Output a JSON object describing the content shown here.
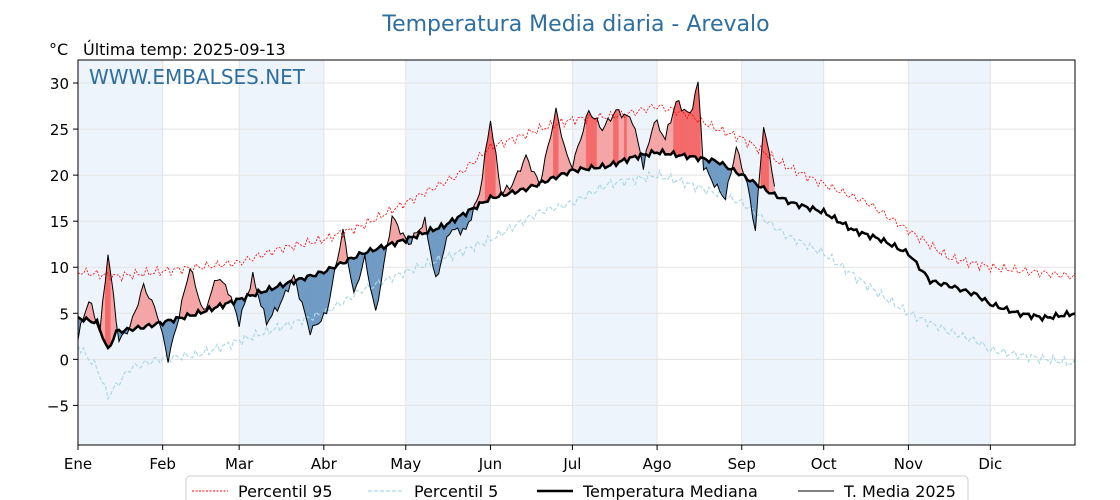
{
  "chart_data": {
    "type": "line",
    "title": "Temperatura Media diaria - Arevalo",
    "unit_label": "°C",
    "subtitle": "Última temp: 2025-09-13",
    "watermark": "WWW.EMBALSES.NET",
    "ylim": [
      -9.3,
      32.5
    ],
    "y_ticks": [
      -5,
      0,
      5,
      10,
      15,
      20,
      25,
      30
    ],
    "y_tick_labels": [
      "−5",
      "0",
      "5",
      "10",
      "15",
      "20",
      "25",
      "30"
    ],
    "xlim": [
      1,
      366
    ],
    "month_ticks": [
      {
        "day": 1,
        "label": "Ene"
      },
      {
        "day": 32,
        "label": "Feb"
      },
      {
        "day": 60,
        "label": "Mar"
      },
      {
        "day": 91,
        "label": "Abr"
      },
      {
        "day": 121,
        "label": "May"
      },
      {
        "day": 152,
        "label": "Jun"
      },
      {
        "day": 182,
        "label": "Jul"
      },
      {
        "day": 213,
        "label": "Ago"
      },
      {
        "day": 244,
        "label": "Sep"
      },
      {
        "day": 274,
        "label": "Oct"
      },
      {
        "day": 305,
        "label": "Nov"
      },
      {
        "day": 335,
        "label": "Dic"
      }
    ],
    "shaded_month_bands": [
      [
        1,
        32
      ],
      [
        60,
        91
      ],
      [
        121,
        152
      ],
      [
        182,
        213
      ],
      [
        244,
        274
      ],
      [
        305,
        335
      ]
    ],
    "grid": true,
    "legend_position": "bottom",
    "colors": {
      "p95": "#ff0000",
      "p5": "#add8e6",
      "median": "#000000",
      "current": "#000000",
      "fill_above": "#f4a6a6",
      "fill_above_extreme": "#f46a6a",
      "fill_below": "#6f9bc4",
      "band": "#eef4fb",
      "title": "#2f6f9f"
    },
    "series": [
      {
        "key": "p95",
        "name": "Percentil 95",
        "knots": [
          [
            1,
            9.5
          ],
          [
            15,
            9
          ],
          [
            30,
            9.5
          ],
          [
            45,
            10
          ],
          [
            60,
            10.5
          ],
          [
            75,
            12
          ],
          [
            91,
            13
          ],
          [
            105,
            14.5
          ],
          [
            121,
            17
          ],
          [
            140,
            20
          ],
          [
            152,
            23
          ],
          [
            170,
            25
          ],
          [
            182,
            26
          ],
          [
            200,
            26.5
          ],
          [
            213,
            27.5
          ],
          [
            225,
            26.5
          ],
          [
            235,
            25
          ],
          [
            244,
            24
          ],
          [
            260,
            21
          ],
          [
            274,
            19
          ],
          [
            290,
            17
          ],
          [
            305,
            14
          ],
          [
            320,
            11
          ],
          [
            335,
            10
          ],
          [
            350,
            9.5
          ],
          [
            366,
            9
          ]
        ]
      },
      {
        "key": "p5",
        "name": "Percentil 5",
        "knots": [
          [
            1,
            1.5
          ],
          [
            8,
            -1
          ],
          [
            12,
            -4
          ],
          [
            20,
            -1
          ],
          [
            30,
            0
          ],
          [
            45,
            0.5
          ],
          [
            60,
            2
          ],
          [
            75,
            3.5
          ],
          [
            91,
            5
          ],
          [
            105,
            7.5
          ],
          [
            121,
            9.5
          ],
          [
            140,
            11.5
          ],
          [
            152,
            13
          ],
          [
            170,
            16
          ],
          [
            182,
            17
          ],
          [
            195,
            19
          ],
          [
            213,
            20
          ],
          [
            225,
            19
          ],
          [
            235,
            18
          ],
          [
            244,
            17
          ],
          [
            260,
            13.5
          ],
          [
            274,
            11.5
          ],
          [
            290,
            8
          ],
          [
            305,
            5
          ],
          [
            320,
            3
          ],
          [
            330,
            2
          ],
          [
            335,
            1
          ],
          [
            345,
            0.5
          ],
          [
            366,
            -0.5
          ]
        ]
      },
      {
        "key": "median",
        "name": "Temperatura Mediana",
        "knots": [
          [
            1,
            4.5
          ],
          [
            8,
            4
          ],
          [
            12,
            1
          ],
          [
            15,
            3
          ],
          [
            25,
            3.5
          ],
          [
            32,
            4
          ],
          [
            45,
            5
          ],
          [
            60,
            6.5
          ],
          [
            75,
            8
          ],
          [
            91,
            9.5
          ],
          [
            105,
            11.5
          ],
          [
            121,
            13
          ],
          [
            135,
            14.5
          ],
          [
            152,
            17.5
          ],
          [
            165,
            18.5
          ],
          [
            182,
            20.5
          ],
          [
            195,
            21
          ],
          [
            205,
            22
          ],
          [
            213,
            22.5
          ],
          [
            225,
            22
          ],
          [
            235,
            21.5
          ],
          [
            244,
            20
          ],
          [
            255,
            18
          ],
          [
            262,
            17
          ],
          [
            274,
            16
          ],
          [
            285,
            14
          ],
          [
            295,
            13
          ],
          [
            305,
            11.5
          ],
          [
            313,
            8.5
          ],
          [
            320,
            8
          ],
          [
            330,
            7
          ],
          [
            335,
            6
          ],
          [
            345,
            5
          ],
          [
            355,
            4.5
          ],
          [
            366,
            5
          ]
        ]
      },
      {
        "key": "current",
        "name": "T. Media 2025",
        "end_day": 256,
        "knots": [
          [
            1,
            2.5
          ],
          [
            5,
            6.5
          ],
          [
            9,
            3
          ],
          [
            12,
            11.5
          ],
          [
            16,
            2
          ],
          [
            20,
            3.5
          ],
          [
            25,
            8
          ],
          [
            30,
            5
          ],
          [
            34,
            0
          ],
          [
            37,
            3.5
          ],
          [
            42,
            10
          ],
          [
            47,
            5
          ],
          [
            52,
            9
          ],
          [
            56,
            7.5
          ],
          [
            60,
            4
          ],
          [
            65,
            9
          ],
          [
            70,
            4
          ],
          [
            75,
            6
          ],
          [
            80,
            9
          ],
          [
            86,
            3
          ],
          [
            92,
            5
          ],
          [
            98,
            14
          ],
          [
            102,
            7
          ],
          [
            106,
            11
          ],
          [
            110,
            5
          ],
          [
            116,
            15.5
          ],
          [
            122,
            12.5
          ],
          [
            128,
            15
          ],
          [
            132,
            8.5
          ],
          [
            137,
            14
          ],
          [
            143,
            14
          ],
          [
            148,
            18
          ],
          [
            152,
            26
          ],
          [
            156,
            18
          ],
          [
            160,
            19
          ],
          [
            165,
            22
          ],
          [
            170,
            19
          ],
          [
            176,
            27
          ],
          [
            180,
            22
          ],
          [
            182,
            21
          ],
          [
            188,
            27
          ],
          [
            193,
            25
          ],
          [
            198,
            27
          ],
          [
            204,
            26
          ],
          [
            208,
            21
          ],
          [
            212,
            26
          ],
          [
            216,
            24
          ],
          [
            220,
            28
          ],
          [
            225,
            26.5
          ],
          [
            228,
            30
          ],
          [
            230,
            21
          ],
          [
            234,
            19
          ],
          [
            238,
            17.5
          ],
          [
            242,
            23
          ],
          [
            246,
            19
          ],
          [
            249,
            14
          ],
          [
            252,
            25.5
          ],
          [
            256,
            19
          ]
        ]
      }
    ]
  },
  "legend": {
    "items": [
      {
        "key": "p95",
        "label": "Percentil 95"
      },
      {
        "key": "p5",
        "label": "Percentil 5"
      },
      {
        "key": "median",
        "label": "Temperatura Mediana"
      },
      {
        "key": "current",
        "label": "T. Media 2025"
      }
    ]
  }
}
